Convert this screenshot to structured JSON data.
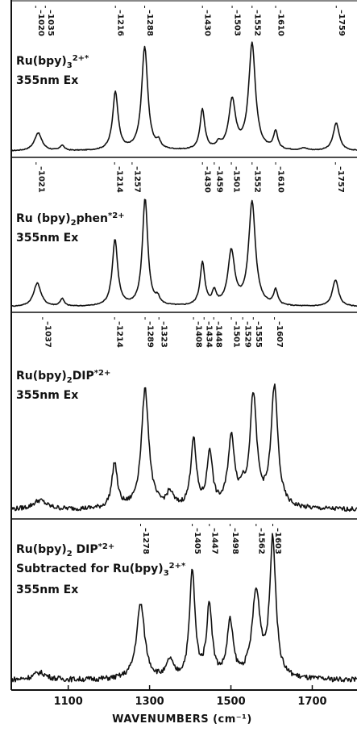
{
  "chart_data": {
    "type": "line",
    "xlabel": "WAVENUMBERS (cm⁻¹)",
    "xlim": [
      960,
      1810
    ],
    "xticks": [
      1100,
      1300,
      1500,
      1700
    ],
    "grid": false,
    "panels": [
      {
        "label": [
          {
            "t": "Ru(bpy)",
            "k": "n"
          },
          {
            "t": "3",
            "k": "sub"
          },
          {
            "t": "2+*",
            "k": "sup"
          }
        ],
        "excitation": "355nm Ex",
        "peak_labels": [
          "1020",
          "1035",
          "1216",
          "1288",
          "1430",
          "1503",
          "1552",
          "1610",
          "1759"
        ],
        "peak_positions": [
          1020,
          1035,
          1216,
          1288,
          1430,
          1503,
          1552,
          1610,
          1759
        ],
        "baseline": 0.02,
        "noise": 0.004,
        "peaks": [
          {
            "x": 1026,
            "h": 0.17,
            "w": 11
          },
          {
            "x": 1085,
            "h": 0.05,
            "w": 6
          },
          {
            "x": 1216,
            "h": 0.55,
            "w": 8
          },
          {
            "x": 1288,
            "h": 0.97,
            "w": 9
          },
          {
            "x": 1322,
            "h": 0.06,
            "w": 6
          },
          {
            "x": 1430,
            "h": 0.38,
            "w": 7
          },
          {
            "x": 1470,
            "h": 0.05,
            "w": 7
          },
          {
            "x": 1503,
            "h": 0.46,
            "w": 10
          },
          {
            "x": 1552,
            "h": 1.0,
            "w": 10
          },
          {
            "x": 1610,
            "h": 0.17,
            "w": 6
          },
          {
            "x": 1680,
            "h": 0.02,
            "w": 10
          },
          {
            "x": 1759,
            "h": 0.26,
            "w": 9
          }
        ]
      },
      {
        "label": [
          {
            "t": "Ru (bpy)",
            "k": "n"
          },
          {
            "t": "2",
            "k": "sub"
          },
          {
            "t": "phen",
            "k": "n"
          },
          {
            "t": "*2+",
            "k": "sup"
          }
        ],
        "excitation": "355nm Ex",
        "peak_labels": [
          "1021",
          "1214",
          "1257",
          "1430",
          "1459",
          "1501",
          "1552",
          "1610",
          "1757"
        ],
        "peak_positions": [
          1021,
          1214,
          1257,
          1430,
          1459,
          1501,
          1552,
          1610,
          1757
        ],
        "baseline": 0.02,
        "noise": 0.004,
        "peaks": [
          {
            "x": 1024,
            "h": 0.22,
            "w": 11
          },
          {
            "x": 1085,
            "h": 0.07,
            "w": 6
          },
          {
            "x": 1215,
            "h": 0.62,
            "w": 8
          },
          {
            "x": 1289,
            "h": 1.0,
            "w": 8
          },
          {
            "x": 1320,
            "h": 0.06,
            "w": 6
          },
          {
            "x": 1430,
            "h": 0.4,
            "w": 7
          },
          {
            "x": 1459,
            "h": 0.12,
            "w": 6
          },
          {
            "x": 1501,
            "h": 0.5,
            "w": 10
          },
          {
            "x": 1552,
            "h": 0.97,
            "w": 10
          },
          {
            "x": 1610,
            "h": 0.14,
            "w": 6
          },
          {
            "x": 1757,
            "h": 0.25,
            "w": 9
          }
        ]
      },
      {
        "label": [
          {
            "t": "Ru(bpy)",
            "k": "n"
          },
          {
            "t": "2",
            "k": "sub"
          },
          {
            "t": "DIP",
            "k": "n"
          },
          {
            "t": "*2+",
            "k": "sup"
          }
        ],
        "excitation": "355nm Ex",
        "peak_labels": [
          "1037",
          "1214",
          "1289",
          "1323",
          "1408",
          "1434",
          "1448",
          "1501",
          "1529",
          "1555",
          "1607"
        ],
        "peak_positions": [
          1037,
          1214,
          1289,
          1323,
          1408,
          1434,
          1448,
          1501,
          1529,
          1555,
          1607
        ],
        "baseline": 0.04,
        "noise": 0.018,
        "peaks": [
          {
            "x": 1030,
            "h": 0.07,
            "w": 20
          },
          {
            "x": 1214,
            "h": 0.35,
            "w": 8
          },
          {
            "x": 1289,
            "h": 0.92,
            "w": 11
          },
          {
            "x": 1350,
            "h": 0.11,
            "w": 10
          },
          {
            "x": 1408,
            "h": 0.53,
            "w": 8
          },
          {
            "x": 1448,
            "h": 0.43,
            "w": 8
          },
          {
            "x": 1501,
            "h": 0.53,
            "w": 10
          },
          {
            "x": 1529,
            "h": 0.1,
            "w": 7
          },
          {
            "x": 1555,
            "h": 0.86,
            "w": 10
          },
          {
            "x": 1607,
            "h": 0.93,
            "w": 10
          }
        ]
      },
      {
        "label": [
          {
            "t": "Ru(bpy)",
            "k": "n"
          },
          {
            "t": "2",
            "k": "sub"
          },
          {
            "t": " DIP",
            "k": "n"
          },
          {
            "t": "*2+",
            "k": "sup"
          }
        ],
        "label2": [
          {
            "t": "Subtracted for Ru(bpy)",
            "k": "n"
          },
          {
            "t": "3",
            "k": "sub"
          },
          {
            "t": "2+*",
            "k": "sup"
          }
        ],
        "excitation": "355nm Ex",
        "peak_labels": [
          "1278",
          "1405",
          "1447",
          "1498",
          "1562",
          "1603"
        ],
        "peak_positions": [
          1278,
          1405,
          1447,
          1498,
          1562,
          1603
        ],
        "baseline": 0.04,
        "noise": 0.018,
        "peaks": [
          {
            "x": 1030,
            "h": 0.05,
            "w": 20
          },
          {
            "x": 1278,
            "h": 0.52,
            "w": 12
          },
          {
            "x": 1350,
            "h": 0.12,
            "w": 9
          },
          {
            "x": 1405,
            "h": 0.74,
            "w": 8
          },
          {
            "x": 1447,
            "h": 0.5,
            "w": 8
          },
          {
            "x": 1498,
            "h": 0.38,
            "w": 9
          },
          {
            "x": 1562,
            "h": 0.58,
            "w": 12
          },
          {
            "x": 1603,
            "h": 0.95,
            "w": 9
          }
        ]
      }
    ]
  }
}
